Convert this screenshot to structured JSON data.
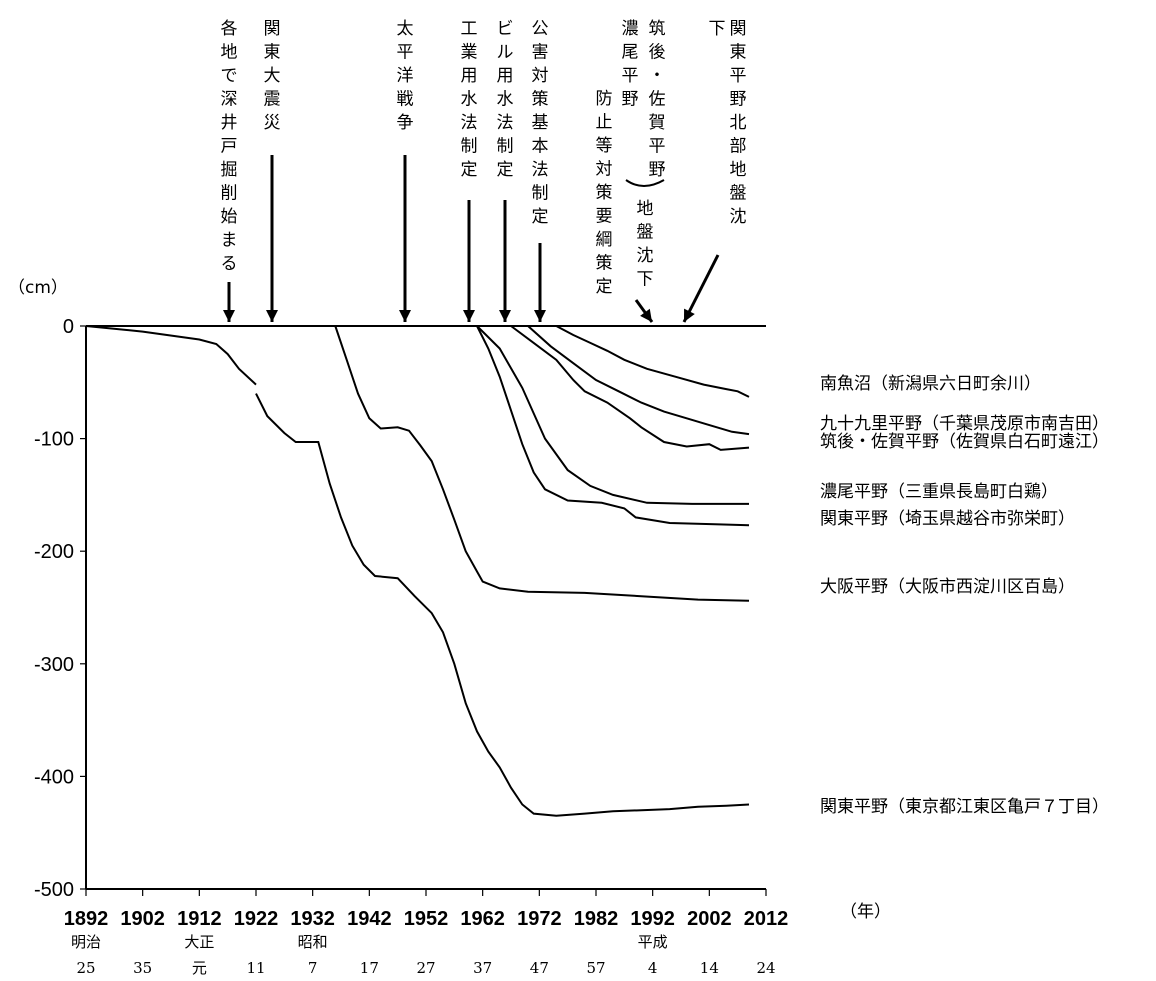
{
  "chart_data": {
    "type": "line",
    "title": "",
    "y_unit": "（cm）",
    "x_unit": "（年）",
    "xlim": [
      1892,
      2012
    ],
    "ylim": [
      -500,
      0
    ],
    "grid": false,
    "x_ticks": [
      1892,
      1902,
      1912,
      1922,
      1932,
      1942,
      1952,
      1962,
      1972,
      1982,
      1992,
      2002,
      2012
    ],
    "y_ticks": [
      0,
      -100,
      -200,
      -300,
      -400,
      -500
    ],
    "era_ticks": [
      {
        "x": 1892,
        "era": "明治",
        "year": "25"
      },
      {
        "x": 1902,
        "era": "",
        "year": "35"
      },
      {
        "x": 1912,
        "era": "大正",
        "year": "元"
      },
      {
        "x": 1922,
        "era": "",
        "year": "11"
      },
      {
        "x": 1932,
        "era": "昭和",
        "year": "7"
      },
      {
        "x": 1942,
        "era": "",
        "year": "17"
      },
      {
        "x": 1952,
        "era": "",
        "year": "27"
      },
      {
        "x": 1962,
        "era": "",
        "year": "37"
      },
      {
        "x": 1972,
        "era": "",
        "year": "47"
      },
      {
        "x": 1982,
        "era": "",
        "year": "57"
      },
      {
        "x": 1992,
        "era": "平成",
        "year": "4"
      },
      {
        "x": 2002,
        "era": "",
        "year": "14"
      },
      {
        "x": 2012,
        "era": "",
        "year": "24"
      }
    ],
    "series": [
      {
        "name": "関東平野（東京都江東区亀戸７丁目）",
        "segments": [
          [
            [
              1892,
              0
            ],
            [
              1902,
              -5
            ],
            [
              1912,
              -12
            ],
            [
              1915,
              -16
            ],
            [
              1917,
              -25
            ],
            [
              1919,
              -38
            ],
            [
              1922,
              -52
            ]
          ],
          [
            [
              1922,
              -60
            ],
            [
              1924,
              -80
            ],
            [
              1927,
              -95
            ],
            [
              1929,
              -103
            ],
            [
              1933,
              -103
            ],
            [
              1935,
              -140
            ],
            [
              1937,
              -170
            ],
            [
              1939,
              -195
            ],
            [
              1941,
              -212
            ],
            [
              1943,
              -222
            ],
            [
              1947,
              -224
            ],
            [
              1950,
              -240
            ],
            [
              1953,
              -255
            ],
            [
              1955,
              -272
            ],
            [
              1957,
              -300
            ],
            [
              1959,
              -335
            ],
            [
              1961,
              -360
            ],
            [
              1963,
              -378
            ],
            [
              1965,
              -392
            ],
            [
              1967,
              -410
            ],
            [
              1969,
              -425
            ],
            [
              1971,
              -433
            ],
            [
              1975,
              -435
            ],
            [
              1980,
              -433
            ],
            [
              1985,
              -431
            ],
            [
              1990,
              -430
            ],
            [
              1995,
              -429
            ],
            [
              2000,
              -427
            ],
            [
              2005,
              -426
            ],
            [
              2009,
              -425
            ]
          ]
        ]
      },
      {
        "name": "大阪平野（大阪市西淀川区百島）",
        "segments": [
          [
            [
              1936,
              0
            ],
            [
              1938,
              -30
            ],
            [
              1940,
              -60
            ],
            [
              1942,
              -82
            ],
            [
              1944,
              -91
            ],
            [
              1947,
              -90
            ],
            [
              1949,
              -93
            ],
            [
              1951,
              -106
            ],
            [
              1953,
              -120
            ],
            [
              1955,
              -145
            ],
            [
              1957,
              -172
            ],
            [
              1959,
              -200
            ],
            [
              1961,
              -218
            ],
            [
              1962,
              -227
            ],
            [
              1965,
              -233
            ],
            [
              1970,
              -236
            ],
            [
              1980,
              -237
            ],
            [
              1990,
              -240
            ],
            [
              2000,
              -243
            ],
            [
              2009,
              -244
            ]
          ]
        ]
      },
      {
        "name": "関東平野（埼玉県越谷市弥栄町）",
        "segments": [
          [
            [
              1961,
              0
            ],
            [
              1963,
              -20
            ],
            [
              1965,
              -45
            ],
            [
              1967,
              -75
            ],
            [
              1969,
              -105
            ],
            [
              1971,
              -130
            ],
            [
              1973,
              -145
            ],
            [
              1977,
              -155
            ],
            [
              1983,
              -157
            ],
            [
              1987,
              -162
            ],
            [
              1989,
              -170
            ],
            [
              1995,
              -175
            ],
            [
              2003,
              -176
            ],
            [
              2009,
              -177
            ]
          ]
        ]
      },
      {
        "name": "濃尾平野（三重県長島町白鶏）",
        "segments": [
          [
            [
              1961,
              0
            ],
            [
              1965,
              -20
            ],
            [
              1969,
              -55
            ],
            [
              1973,
              -100
            ],
            [
              1977,
              -128
            ],
            [
              1981,
              -142
            ],
            [
              1985,
              -150
            ],
            [
              1991,
              -157
            ],
            [
              1999,
              -158
            ],
            [
              2009,
              -158
            ]
          ]
        ]
      },
      {
        "name": "筑後・佐賀平野（佐賀県白石町遠江）",
        "segments": [
          [
            [
              1967,
              0
            ],
            [
              1971,
              -15
            ],
            [
              1975,
              -30
            ],
            [
              1978,
              -48
            ],
            [
              1980,
              -58
            ],
            [
              1984,
              -68
            ],
            [
              1988,
              -82
            ],
            [
              1990,
              -90
            ],
            [
              1994,
              -103
            ],
            [
              1998,
              -107
            ],
            [
              2002,
              -105
            ],
            [
              2004,
              -110
            ],
            [
              2009,
              -108
            ]
          ]
        ]
      },
      {
        "name": "九十九里平野（千葉県茂原市南吉田）",
        "segments": [
          [
            [
              1970,
              0
            ],
            [
              1974,
              -18
            ],
            [
              1978,
              -33
            ],
            [
              1982,
              -48
            ],
            [
              1986,
              -58
            ],
            [
              1990,
              -68
            ],
            [
              1994,
              -76
            ],
            [
              1998,
              -82
            ],
            [
              2002,
              -88
            ],
            [
              2006,
              -94
            ],
            [
              2009,
              -96
            ]
          ]
        ]
      },
      {
        "name": "南魚沼（新潟県六日町余川）",
        "segments": [
          [
            [
              1975,
              0
            ],
            [
              1978,
              -8
            ],
            [
              1981,
              -15
            ],
            [
              1984,
              -22
            ],
            [
              1987,
              -30
            ],
            [
              1991,
              -38
            ],
            [
              1996,
              -45
            ],
            [
              2001,
              -52
            ],
            [
              2005,
              -56
            ],
            [
              2007,
              -58
            ],
            [
              2009,
              -63
            ]
          ]
        ]
      }
    ],
    "annotations": [
      {
        "text": "各地で深井戸掘削始まる",
        "arrow_x": 1916
      },
      {
        "text": "関東大震災",
        "arrow_x": 1923
      },
      {
        "text": "太平洋戦争",
        "arrow_x": 1945
      },
      {
        "text": "工業用水法制定",
        "arrow_x": 1956
      },
      {
        "text": "ビル用水法制定",
        "arrow_x": 1962
      },
      {
        "text": "公害対策基本法制定",
        "arrow_x": 1968
      },
      {
        "text": "濃尾平野",
        "arrow_x": null
      },
      {
        "text": "筑後・佐賀平野",
        "arrow_x": null
      },
      {
        "text": "防止等対策要綱策定",
        "arrow_x": null
      },
      {
        "text": "地盤沈下",
        "arrow_x": 1986
      },
      {
        "text": "関東平野北部地盤沈下",
        "arrow_x": 1992
      }
    ]
  }
}
